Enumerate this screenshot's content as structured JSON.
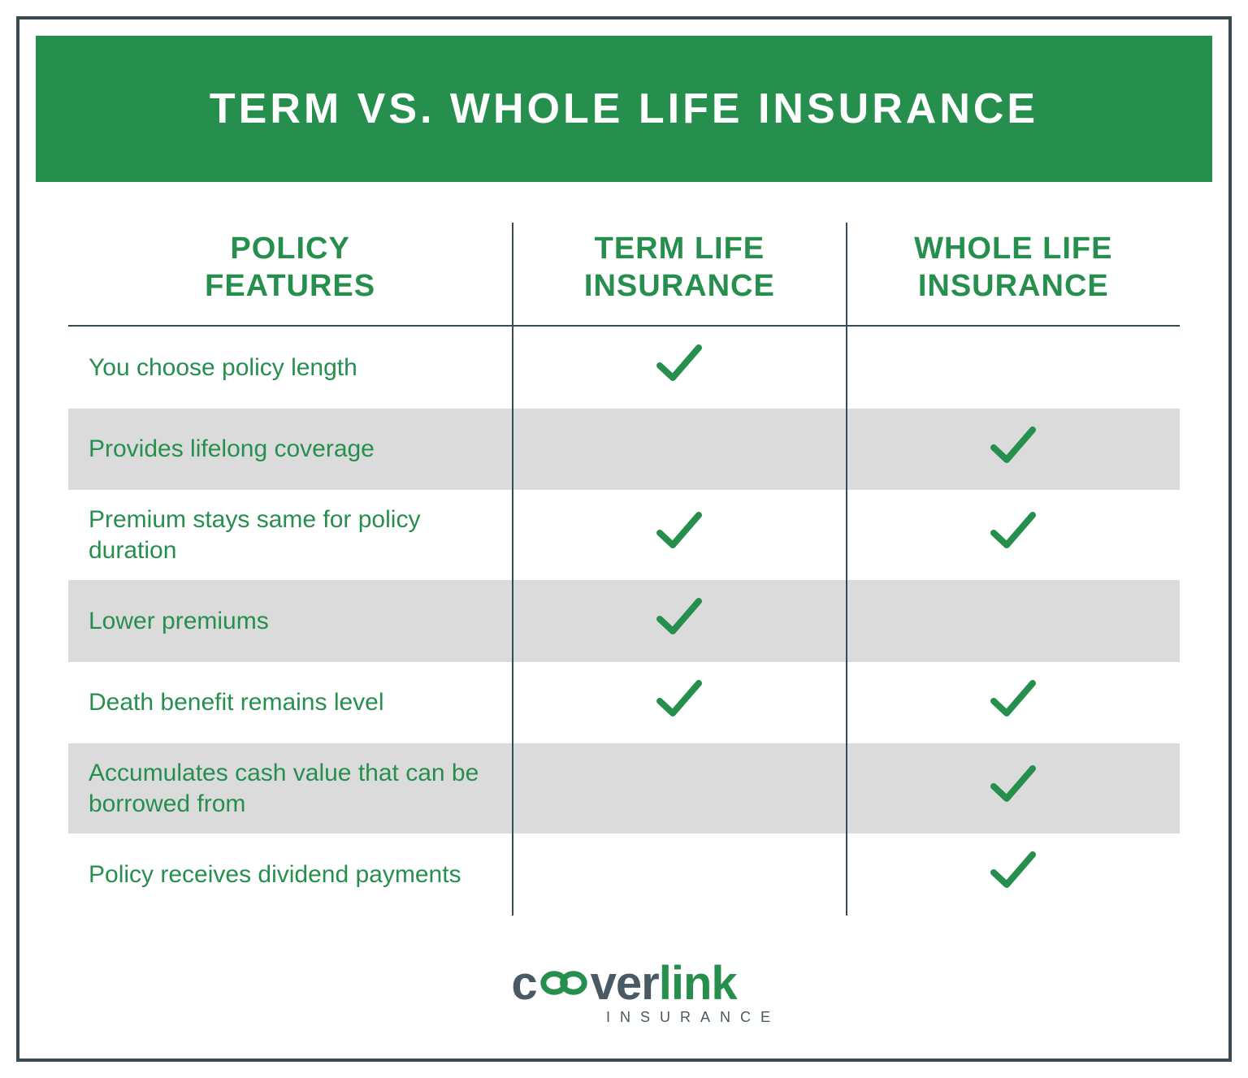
{
  "colors": {
    "green": "#278f4e",
    "dark": "#3a4a54",
    "stripe": "#dbdbdb",
    "white": "#ffffff"
  },
  "header": {
    "title": "TERM VS. WHOLE LIFE INSURANCE"
  },
  "table": {
    "columns": {
      "features": "POLICY FEATURES",
      "term": "TERM LIFE INSURANCE",
      "whole": "WHOLE LIFE INSURANCE"
    },
    "rows": [
      {
        "label": "You choose policy length",
        "term": true,
        "whole": false,
        "striped": false
      },
      {
        "label": "Provides lifelong coverage",
        "term": false,
        "whole": true,
        "striped": true
      },
      {
        "label": "Premium stays same for policy duration",
        "term": true,
        "whole": true,
        "striped": false
      },
      {
        "label": "Lower premiums",
        "term": true,
        "whole": false,
        "striped": true
      },
      {
        "label": "Death benefit remains level",
        "term": true,
        "whole": true,
        "striped": false
      },
      {
        "label": "Accumulates cash value that can be borrowed from",
        "term": false,
        "whole": true,
        "striped": true
      },
      {
        "label": "Policy receives dividend payments",
        "term": false,
        "whole": true,
        "striped": false
      }
    ]
  },
  "logo": {
    "part1": "c",
    "part2": "ver",
    "part3": "link",
    "sub": "INSURANCE"
  }
}
